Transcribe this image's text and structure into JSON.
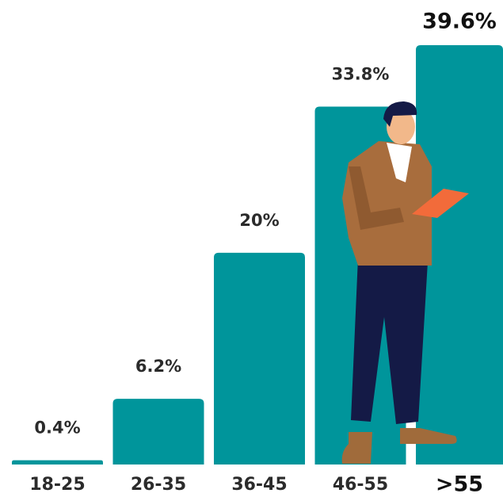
{
  "chart_data": {
    "type": "bar",
    "categories": [
      "18-25",
      "26-35",
      "36-45",
      "46-55",
      ">55"
    ],
    "values": [
      0.4,
      6.2,
      20,
      33.8,
      39.6
    ],
    "value_labels": [
      "0.4%",
      "6.2%",
      "20%",
      "33.8%",
      "39.6%"
    ],
    "color": "#00959b"
  }
}
